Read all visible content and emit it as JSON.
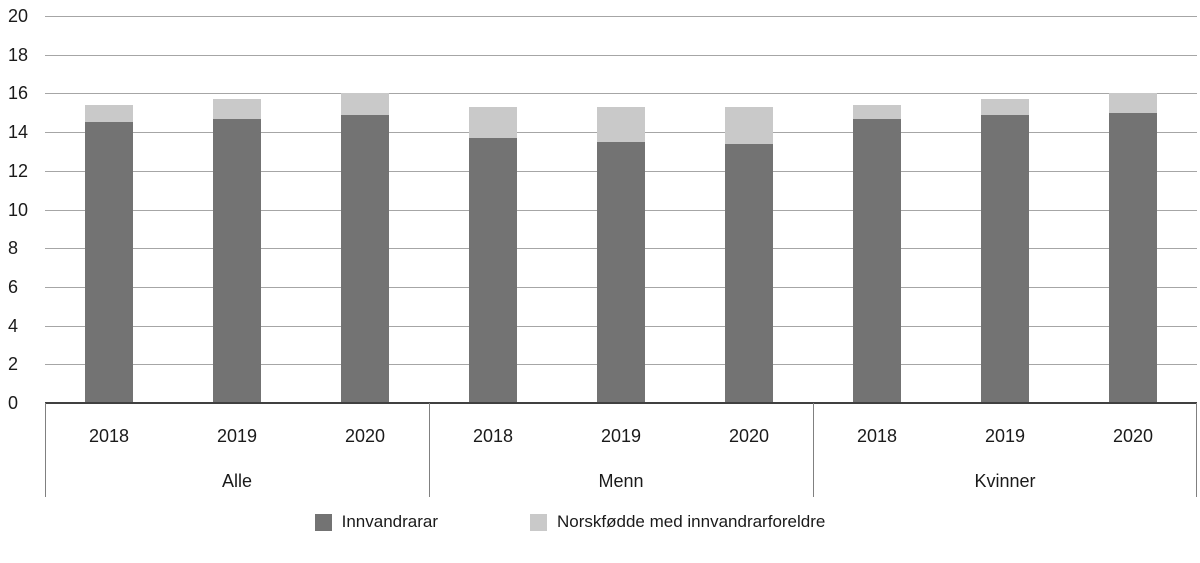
{
  "chart_data": {
    "type": "bar",
    "stacked": true,
    "title": "",
    "xlabel": "",
    "ylabel": "",
    "ylim": [
      0,
      20
    ],
    "yticks": [
      "0",
      "2",
      "4",
      "6",
      "8",
      "10",
      "12",
      "14",
      "16",
      "18",
      "20"
    ],
    "grid": true,
    "legend_position": "bottom",
    "groups": [
      {
        "label": "Alle",
        "years": [
          "2018",
          "2019",
          "2020"
        ]
      },
      {
        "label": "Menn",
        "years": [
          "2018",
          "2019",
          "2020"
        ]
      },
      {
        "label": "Kvinner",
        "years": [
          "2018",
          "2019",
          "2020"
        ]
      }
    ],
    "categories": [
      "Alle 2018",
      "Alle 2019",
      "Alle 2020",
      "Menn 2018",
      "Menn 2019",
      "Menn 2020",
      "Kvinner 2018",
      "Kvinner 2019",
      "Kvinner 2020"
    ],
    "series": [
      {
        "name": "Innvandrarar",
        "color": "#737373",
        "values": [
          14.5,
          14.7,
          14.9,
          13.7,
          13.5,
          13.4,
          14.7,
          14.9,
          15.0
        ]
      },
      {
        "name": "Norskfødde med innvandrarforeldre",
        "color": "#c9c9c9",
        "values": [
          0.9,
          1.0,
          1.1,
          1.6,
          1.8,
          1.9,
          0.7,
          0.8,
          1.0
        ]
      }
    ],
    "colors": {
      "gridline": "#a6a6a6",
      "axis": "#404040",
      "separator": "#808080",
      "text": "#1a1a1a",
      "background": "#ffffff"
    }
  }
}
